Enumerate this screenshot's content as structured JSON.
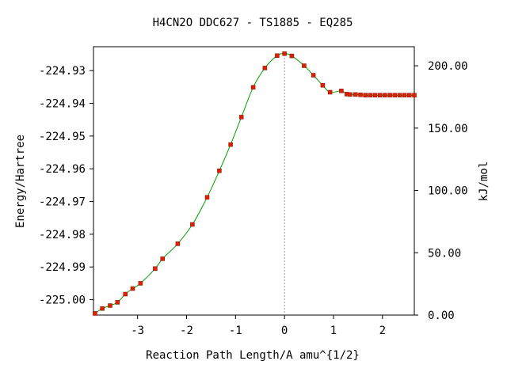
{
  "chart_data": {
    "type": "line",
    "title": "H4CN2O   DDC627 - TS1885 - EQ285",
    "xlabel": "Reaction Path Length/A amu^{1/2}",
    "ylabel": "Energy/Hartree",
    "y2label": "kJ/mol",
    "xlim": [
      -3.9,
      2.65
    ],
    "ylim": [
      -225.0047,
      -224.9227
    ],
    "y2lim": [
      0.0,
      215.3
    ],
    "x_ticks": [
      -3,
      -2,
      -1,
      0,
      1,
      2
    ],
    "x_tick_labels": [
      "-3",
      "-2",
      "-1",
      "0",
      "1",
      "2"
    ],
    "y_ticks": [
      -224.93,
      -224.94,
      -224.95,
      -224.96,
      -224.97,
      -224.98,
      -224.99,
      -225.0
    ],
    "y_tick_labels": [
      "-224.93",
      "-224.94",
      "-224.95",
      "-224.96",
      "-224.97",
      "-224.98",
      "-224.99",
      "-225.00"
    ],
    "y2_ticks": [
      0,
      50,
      100,
      150,
      200
    ],
    "y2_tick_labels": [
      "0.00",
      "50.00",
      "100.00",
      "150.00",
      "200.00"
    ],
    "ts_x": 0.0,
    "grid": false,
    "legend": "none",
    "series": [
      {
        "line_color": "#00a000",
        "marker_color": "#e02000",
        "x": [
          -3.87,
          -3.72,
          -3.56,
          -3.41,
          -3.25,
          -3.1,
          -2.94,
          -2.64,
          -2.49,
          -2.18,
          -1.88,
          -1.58,
          -1.33,
          -1.1,
          -0.88,
          -0.64,
          -0.4,
          -0.15,
          0.0,
          0.15,
          0.4,
          0.59,
          0.78,
          0.93,
          1.16,
          1.27,
          1.34,
          1.45,
          1.55,
          1.65,
          1.75,
          1.85,
          1.95,
          2.05,
          2.15,
          2.25,
          2.35,
          2.45,
          2.55,
          2.65
        ],
        "y": [
          -225.0042,
          -225.0027,
          -225.0018,
          -225.0008,
          -224.9983,
          -224.9966,
          -224.995,
          -224.9905,
          -224.9875,
          -224.9829,
          -224.977,
          -224.9687,
          -224.9606,
          -224.9526,
          -224.9442,
          -224.9351,
          -224.9292,
          -224.9254,
          -224.9248,
          -224.9255,
          -224.9285,
          -224.9314,
          -224.9345,
          -224.9366,
          -224.9362,
          -224.9372,
          -224.9373,
          -224.9373,
          -224.9374,
          -224.9375,
          -224.9375,
          -224.9375,
          -224.9375,
          -224.9375,
          -224.9375,
          -224.9375,
          -224.9375,
          -224.9375,
          -224.9375,
          -224.9375
        ]
      }
    ]
  }
}
